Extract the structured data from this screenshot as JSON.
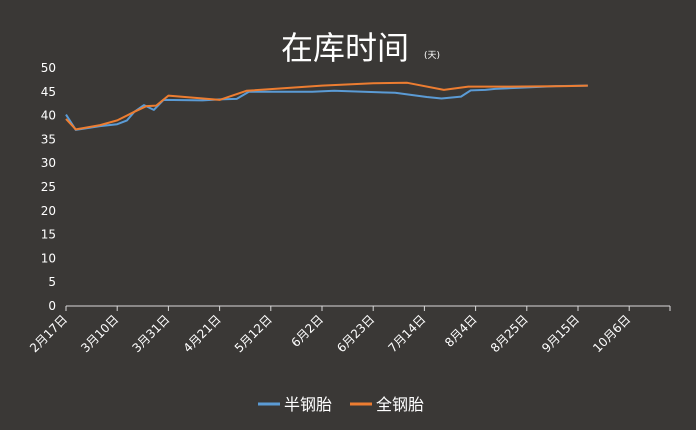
{
  "chart_data": {
    "type": "line",
    "title": "在库时间",
    "title_unit": "(天)",
    "ylim": [
      0,
      50
    ],
    "yticks": [
      0,
      5,
      10,
      15,
      20,
      25,
      30,
      35,
      40,
      45,
      50
    ],
    "grid": false,
    "legend_position": "bottom",
    "x_tick_labels": [
      "2月17日",
      "3月10日",
      "3月31日",
      "4月21日",
      "5月12日",
      "6月2日",
      "6月23日",
      "7月14日",
      "8月4日",
      "8月25日",
      "9月15日",
      "10月6日"
    ],
    "x_start": "2月17日",
    "x_end_days": 252,
    "series": [
      {
        "name": "半钢胎",
        "color": "#5b9bd5",
        "points": [
          [
            0,
            40.2
          ],
          [
            4,
            37.0
          ],
          [
            14,
            37.8
          ],
          [
            21,
            38.2
          ],
          [
            25,
            39.0
          ],
          [
            28,
            40.8
          ],
          [
            32,
            42.2
          ],
          [
            36,
            41.2
          ],
          [
            40,
            43.3
          ],
          [
            56,
            43.2
          ],
          [
            63,
            43.4
          ],
          [
            70,
            43.5
          ],
          [
            75,
            45.0
          ],
          [
            101,
            45.0
          ],
          [
            110,
            45.2
          ],
          [
            135,
            44.8
          ],
          [
            148,
            43.9
          ],
          [
            154,
            43.6
          ],
          [
            162,
            44.0
          ],
          [
            166,
            45.3
          ],
          [
            172,
            45.4
          ],
          [
            176,
            45.6
          ],
          [
            201,
            46.2
          ],
          [
            214,
            46.3
          ]
        ]
      },
      {
        "name": "全钢胎",
        "color": "#ed7d31",
        "points": [
          [
            0,
            39.3
          ],
          [
            4,
            37.1
          ],
          [
            14,
            38.0
          ],
          [
            21,
            39.0
          ],
          [
            28,
            40.8
          ],
          [
            33,
            42.0
          ],
          [
            37,
            42.1
          ],
          [
            42,
            44.2
          ],
          [
            63,
            43.3
          ],
          [
            74,
            45.2
          ],
          [
            105,
            46.3
          ],
          [
            126,
            46.8
          ],
          [
            140,
            46.9
          ],
          [
            155,
            45.4
          ],
          [
            165,
            46.1
          ],
          [
            172,
            46.1
          ],
          [
            182,
            46.1
          ],
          [
            205,
            46.2
          ],
          [
            214,
            46.3
          ]
        ]
      }
    ]
  }
}
